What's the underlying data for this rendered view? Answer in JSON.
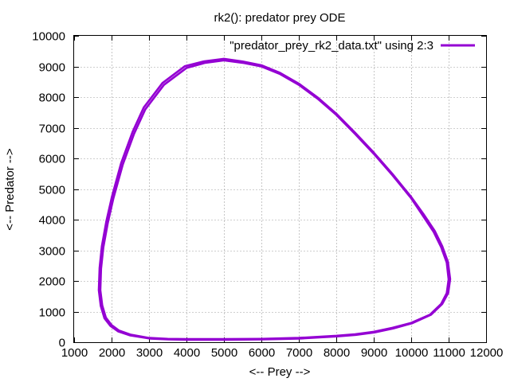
{
  "chart_data": {
    "type": "line",
    "title": "rk2(): predator prey ODE",
    "xlabel": "<-- Prey -->",
    "ylabel": "<-- Predator -->",
    "xlim": [
      1000,
      12000
    ],
    "ylim": [
      0,
      10000
    ],
    "xticks": [
      1000,
      2000,
      3000,
      4000,
      5000,
      6000,
      7000,
      8000,
      9000,
      10000,
      11000,
      12000
    ],
    "yticks": [
      0,
      1000,
      2000,
      3000,
      4000,
      5000,
      6000,
      7000,
      8000,
      9000,
      10000
    ],
    "grid": true,
    "legend_position": "top-right",
    "series": [
      {
        "name": "\"predator_prey_rk2_data.txt\" using 2:3",
        "color": "#9400d3",
        "points": [
          [
            5000,
            9200
          ],
          [
            5500,
            9120
          ],
          [
            6000,
            9000
          ],
          [
            6500,
            8750
          ],
          [
            7000,
            8400
          ],
          [
            7500,
            7950
          ],
          [
            8000,
            7420
          ],
          [
            8500,
            6800
          ],
          [
            9000,
            6150
          ],
          [
            9500,
            5450
          ],
          [
            10000,
            4700
          ],
          [
            10300,
            4150
          ],
          [
            10600,
            3600
          ],
          [
            10800,
            3100
          ],
          [
            10950,
            2600
          ],
          [
            11000,
            2050
          ],
          [
            10950,
            1600
          ],
          [
            10800,
            1250
          ],
          [
            10500,
            900
          ],
          [
            10000,
            630
          ],
          [
            9500,
            470
          ],
          [
            9000,
            340
          ],
          [
            8500,
            260
          ],
          [
            8000,
            210
          ],
          [
            7000,
            140
          ],
          [
            6000,
            110
          ],
          [
            5000,
            100
          ],
          [
            4000,
            100
          ],
          [
            3500,
            110
          ],
          [
            3000,
            140
          ],
          [
            2500,
            250
          ],
          [
            2200,
            380
          ],
          [
            2000,
            560
          ],
          [
            1850,
            800
          ],
          [
            1750,
            1200
          ],
          [
            1700,
            1700
          ],
          [
            1720,
            2400
          ],
          [
            1780,
            3100
          ],
          [
            1900,
            3900
          ],
          [
            2050,
            4700
          ],
          [
            2300,
            5800
          ],
          [
            2600,
            6800
          ],
          [
            2900,
            7600
          ],
          [
            3400,
            8400
          ],
          [
            4000,
            8950
          ],
          [
            4500,
            9120
          ],
          [
            5000,
            9200
          ]
        ]
      },
      {
        "name": "",
        "color": "#9400d3",
        "points": [
          [
            5000,
            9250
          ],
          [
            5500,
            9160
          ],
          [
            6000,
            9040
          ],
          [
            6500,
            8790
          ],
          [
            7000,
            8440
          ],
          [
            7500,
            7990
          ],
          [
            8000,
            7460
          ],
          [
            8500,
            6840
          ],
          [
            9000,
            6190
          ],
          [
            9500,
            5490
          ],
          [
            10000,
            4740
          ],
          [
            10330,
            4180
          ],
          [
            10630,
            3630
          ],
          [
            10830,
            3130
          ],
          [
            10980,
            2620
          ],
          [
            11040,
            2060
          ],
          [
            10990,
            1610
          ],
          [
            10830,
            1250
          ],
          [
            10530,
            900
          ],
          [
            10030,
            620
          ],
          [
            9520,
            450
          ],
          [
            9020,
            320
          ],
          [
            8520,
            240
          ],
          [
            8020,
            190
          ],
          [
            7020,
            120
          ],
          [
            6020,
            90
          ],
          [
            5020,
            80
          ],
          [
            4020,
            80
          ],
          [
            3520,
            90
          ],
          [
            3020,
            120
          ],
          [
            2500,
            220
          ],
          [
            2180,
            350
          ],
          [
            1970,
            530
          ],
          [
            1810,
            780
          ],
          [
            1710,
            1190
          ],
          [
            1660,
            1700
          ],
          [
            1680,
            2420
          ],
          [
            1740,
            3130
          ],
          [
            1860,
            3940
          ],
          [
            2010,
            4750
          ],
          [
            2260,
            5860
          ],
          [
            2560,
            6860
          ],
          [
            2860,
            7660
          ],
          [
            3360,
            8460
          ],
          [
            3960,
            9010
          ],
          [
            4480,
            9170
          ],
          [
            5000,
            9250
          ]
        ]
      }
    ]
  }
}
